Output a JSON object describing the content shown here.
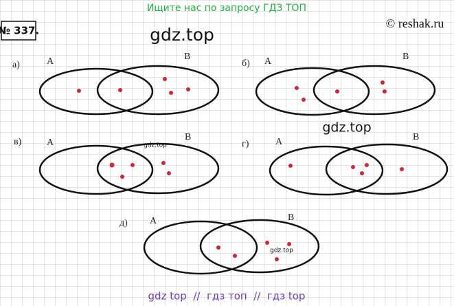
{
  "header": {
    "search_hint": "Ищите нас по запросу ГДЗ ТОП",
    "copyright": "© reshak.ru"
  },
  "task": {
    "number": "№ 337."
  },
  "watermarks": [
    "gdz.top",
    "gdz.top",
    "gdz.top",
    "gdz.top"
  ],
  "diagrams": [
    {
      "label": "а)",
      "set_a": "A",
      "set_b": "B"
    },
    {
      "label": "б)",
      "set_a": "A",
      "set_b": "B"
    },
    {
      "label": "в)",
      "set_a": "A",
      "set_b": "B"
    },
    {
      "label": "г)",
      "set_a": "A",
      "set_b": "B"
    },
    {
      "label": "д)",
      "set_a": "A",
      "set_b": "B"
    }
  ],
  "footer": {
    "text": "gdz top  //  гдз топ  //  гдз top"
  }
}
